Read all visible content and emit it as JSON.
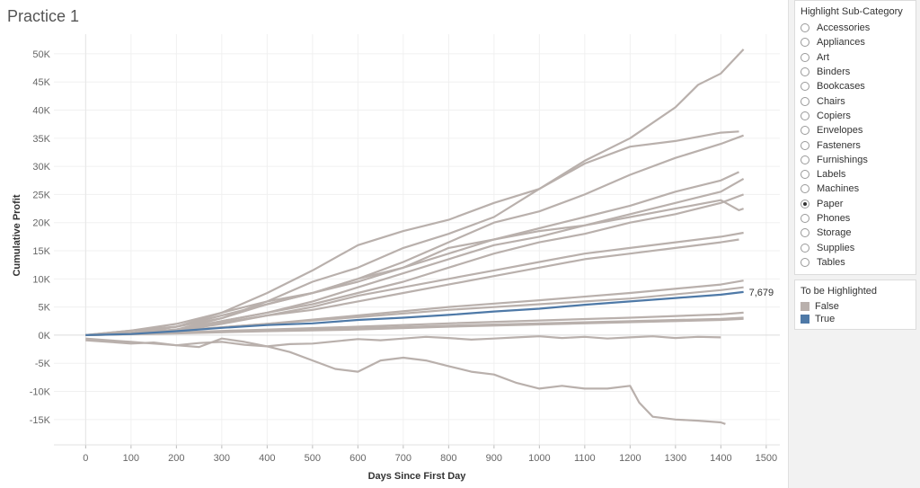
{
  "page": {
    "title": "Practice 1"
  },
  "filter": {
    "title": "Highlight Sub-Category",
    "options": [
      "Accessories",
      "Appliances",
      "Art",
      "Binders",
      "Bookcases",
      "Chairs",
      "Copiers",
      "Envelopes",
      "Fasteners",
      "Furnishings",
      "Labels",
      "Machines",
      "Paper",
      "Phones",
      "Storage",
      "Supplies",
      "Tables"
    ],
    "selected": "Paper"
  },
  "legend": {
    "title": "To be Highlighted",
    "items": [
      {
        "label": "False",
        "color": "#b9b0ac"
      },
      {
        "label": "True",
        "color": "#4e79a7"
      }
    ]
  },
  "chart_data": {
    "type": "line",
    "title": "Practice 1",
    "xlabel": "Days Since First Day",
    "ylabel": "Cumulative Profit",
    "xlim": [
      -70,
      1530
    ],
    "ylim": [
      -19500,
      53500
    ],
    "xticks": [
      0,
      100,
      200,
      300,
      400,
      500,
      600,
      700,
      800,
      900,
      1000,
      1100,
      1200,
      1300,
      1400,
      1500
    ],
    "yticks": [
      -15000,
      -10000,
      -5000,
      0,
      5000,
      10000,
      15000,
      20000,
      25000,
      30000,
      35000,
      40000,
      45000,
      50000
    ],
    "ytick_labels": [
      "-15K",
      "-10K",
      "-5K",
      "0K",
      "5K",
      "10K",
      "15K",
      "20K",
      "25K",
      "30K",
      "35K",
      "40K",
      "45K",
      "50K"
    ],
    "highlight_label": "7,679",
    "series": [
      {
        "name": "Copiers",
        "highlighted": false,
        "x": [
          0,
          100,
          200,
          300,
          400,
          500,
          600,
          700,
          800,
          900,
          1000,
          1100,
          1200,
          1300,
          1350,
          1400,
          1450
        ],
        "y": [
          0,
          800,
          2000,
          4000,
          7500,
          11500,
          16000,
          18500,
          20500,
          23500,
          26000,
          31000,
          35000,
          40500,
          44500,
          46500,
          50800
        ]
      },
      {
        "name": "Phones",
        "highlighted": false,
        "x": [
          0,
          100,
          200,
          300,
          400,
          500,
          600,
          700,
          800,
          900,
          1000,
          1100,
          1200,
          1300,
          1400,
          1440
        ],
        "y": [
          0,
          300,
          1000,
          3000,
          6000,
          9500,
          12000,
          15500,
          18000,
          21000,
          26000,
          30500,
          33500,
          34500,
          36000,
          36200
        ]
      },
      {
        "name": "Accessories",
        "highlighted": false,
        "x": [
          0,
          100,
          200,
          300,
          400,
          500,
          600,
          700,
          800,
          900,
          1000,
          1100,
          1200,
          1300,
          1400,
          1450
        ],
        "y": [
          0,
          800,
          1500,
          3000,
          5500,
          7500,
          10000,
          13000,
          16500,
          20000,
          22000,
          25000,
          28500,
          31500,
          34000,
          35500
        ]
      },
      {
        "name": "Binders",
        "highlighted": false,
        "x": [
          0,
          100,
          200,
          300,
          400,
          500,
          600,
          700,
          800,
          900,
          1000,
          1100,
          1200,
          1300,
          1400,
          1440
        ],
        "y": [
          0,
          300,
          1500,
          3500,
          5500,
          7500,
          10000,
          12000,
          14500,
          17000,
          19000,
          21000,
          23000,
          25500,
          27500,
          29000
        ]
      },
      {
        "name": "Chairs",
        "highlighted": false,
        "x": [
          0,
          100,
          200,
          300,
          400,
          500,
          600,
          700,
          800,
          900,
          1000,
          1100,
          1200,
          1300,
          1400,
          1450
        ],
        "y": [
          0,
          200,
          1000,
          2500,
          4000,
          6000,
          8500,
          11000,
          13500,
          16000,
          17500,
          19500,
          21500,
          23500,
          25500,
          27800
        ]
      },
      {
        "name": "Storage",
        "highlighted": false,
        "x": [
          0,
          100,
          200,
          300,
          400,
          500,
          600,
          700,
          800,
          900,
          1000,
          1100,
          1200,
          1300,
          1400,
          1450
        ],
        "y": [
          0,
          400,
          1000,
          2500,
          4000,
          5500,
          7500,
          9500,
          12000,
          14500,
          16500,
          18000,
          20000,
          21500,
          23500,
          25000
        ]
      },
      {
        "name": "Machines",
        "highlighted": false,
        "x": [
          0,
          100,
          200,
          300,
          400,
          500,
          600,
          700,
          800,
          900,
          1000,
          1100,
          1200,
          1300,
          1400,
          1440,
          1450
        ],
        "y": [
          0,
          400,
          1500,
          4000,
          6000,
          7500,
          9500,
          12000,
          15500,
          17000,
          18500,
          19500,
          21000,
          22500,
          24000,
          22200,
          22500
        ]
      },
      {
        "name": "Appliances",
        "highlighted": false,
        "x": [
          0,
          100,
          200,
          300,
          400,
          500,
          600,
          700,
          800,
          900,
          1000,
          1100,
          1200,
          1300,
          1400,
          1450
        ],
        "y": [
          0,
          300,
          800,
          2000,
          3500,
          5000,
          7000,
          8500,
          10000,
          11500,
          13000,
          14500,
          15500,
          16500,
          17500,
          18200
        ]
      },
      {
        "name": "Furnishings",
        "highlighted": false,
        "x": [
          0,
          100,
          200,
          300,
          400,
          500,
          600,
          700,
          800,
          900,
          1000,
          1100,
          1200,
          1300,
          1400,
          1440
        ],
        "y": [
          0,
          300,
          1000,
          2200,
          3500,
          4500,
          6000,
          7500,
          9000,
          10500,
          12000,
          13500,
          14500,
          15500,
          16500,
          17000
        ]
      },
      {
        "name": "Paper",
        "highlighted": true,
        "x": [
          0,
          100,
          200,
          300,
          400,
          500,
          600,
          700,
          800,
          900,
          1000,
          1100,
          1200,
          1300,
          1400,
          1450
        ],
        "y": [
          0,
          200,
          700,
          1300,
          1800,
          2100,
          2700,
          3100,
          3600,
          4200,
          4700,
          5400,
          6000,
          6600,
          7200,
          7679
        ]
      },
      {
        "name": "Envelopes",
        "highlighted": false,
        "x": [
          0,
          200,
          400,
          600,
          800,
          1000,
          1200,
          1400,
          1450
        ],
        "y": [
          0,
          800,
          2000,
          3500,
          5000,
          6200,
          7500,
          9000,
          9700
        ]
      },
      {
        "name": "Art",
        "highlighted": false,
        "x": [
          0,
          200,
          400,
          600,
          800,
          1000,
          1200,
          1400,
          1450
        ],
        "y": [
          0,
          800,
          2000,
          3200,
          4500,
          5500,
          6500,
          8000,
          8500
        ]
      },
      {
        "name": "Labels",
        "highlighted": false,
        "x": [
          0,
          200,
          400,
          600,
          800,
          1000,
          1200,
          1400,
          1450
        ],
        "y": [
          0,
          500,
          1000,
          1500,
          2100,
          2600,
          3100,
          3700,
          4000
        ]
      },
      {
        "name": "Fasteners",
        "highlighted": false,
        "x": [
          0,
          200,
          400,
          600,
          800,
          1000,
          1200,
          1400,
          1450
        ],
        "y": [
          0,
          400,
          800,
          1200,
          1700,
          2100,
          2500,
          2900,
          3100
        ]
      },
      {
        "name": "Supplies",
        "highlighted": false,
        "x": [
          0,
          200,
          400,
          600,
          800,
          1000,
          1200,
          1400,
          1450
        ],
        "y": [
          0,
          300,
          700,
          1000,
          1500,
          1900,
          2300,
          2700,
          2900
        ]
      },
      {
        "name": "Bookcases",
        "highlighted": false,
        "x": [
          0,
          50,
          100,
          150,
          200,
          250,
          300,
          350,
          400,
          450,
          500,
          550,
          600,
          650,
          700,
          750,
          800,
          850,
          900,
          950,
          1000,
          1050,
          1100,
          1150,
          1200,
          1220,
          1250,
          1300,
          1350,
          1400,
          1410
        ],
        "y": [
          -600,
          -900,
          -1200,
          -1500,
          -1800,
          -2100,
          -600,
          -1200,
          -2000,
          -3000,
          -4500,
          -6000,
          -6500,
          -4500,
          -4000,
          -4500,
          -5500,
          -6500,
          -7000,
          -8500,
          -9500,
          -9000,
          -9500,
          -9500,
          -9000,
          -12000,
          -14500,
          -15000,
          -15200,
          -15500,
          -15800
        ]
      },
      {
        "name": "Tables",
        "highlighted": false,
        "x": [
          0,
          50,
          100,
          150,
          200,
          250,
          300,
          350,
          400,
          450,
          500,
          550,
          600,
          650,
          700,
          750,
          800,
          850,
          900,
          950,
          1000,
          1050,
          1100,
          1150,
          1200,
          1250,
          1300,
          1350,
          1400
        ],
        "y": [
          -900,
          -1200,
          -1500,
          -1300,
          -1800,
          -1400,
          -1200,
          -1700,
          -2000,
          -1600,
          -1500,
          -1100,
          -700,
          -900,
          -600,
          -300,
          -500,
          -800,
          -600,
          -400,
          -200,
          -500,
          -300,
          -600,
          -400,
          -200,
          -500,
          -300,
          -400
        ]
      }
    ]
  }
}
